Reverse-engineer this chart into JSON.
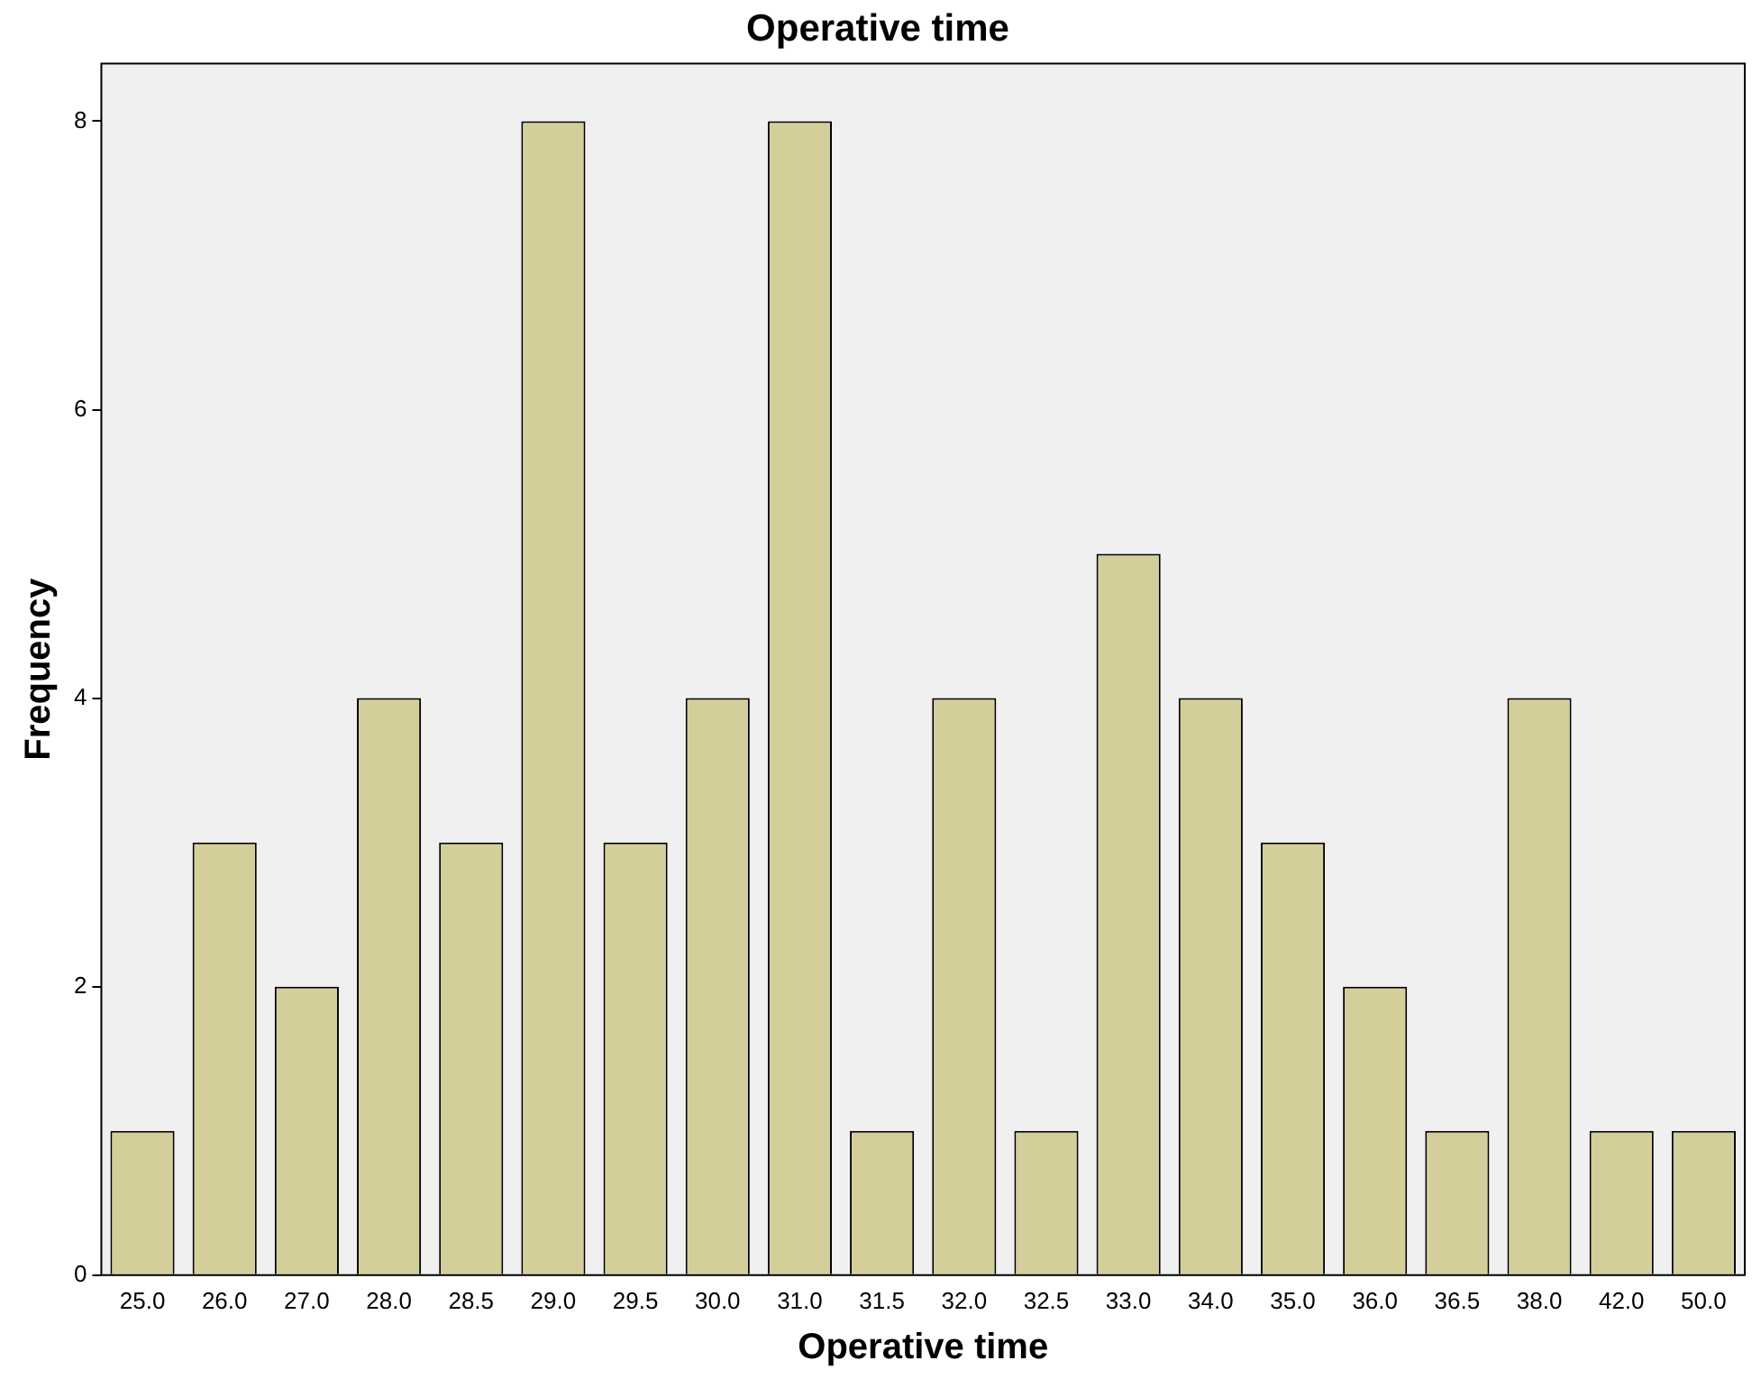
{
  "chart_data": {
    "type": "bar",
    "title": "Operative time",
    "xlabel": "Operative time",
    "ylabel": "Frequency",
    "categories": [
      "25.0",
      "26.0",
      "27.0",
      "28.0",
      "28.5",
      "29.0",
      "29.5",
      "30.0",
      "31.0",
      "31.5",
      "32.0",
      "32.5",
      "33.0",
      "34.0",
      "35.0",
      "36.0",
      "36.5",
      "38.0",
      "42.0",
      "50.0"
    ],
    "values": [
      1,
      3,
      2,
      4,
      3,
      8,
      3,
      4,
      8,
      1,
      4,
      1,
      5,
      4,
      3,
      2,
      1,
      4,
      1,
      1
    ],
    "color": "#d4cf9a",
    "ylim": [
      0,
      8.4
    ],
    "yticks": [
      0,
      2,
      4,
      6,
      8
    ],
    "grid": false,
    "legend": false
  }
}
